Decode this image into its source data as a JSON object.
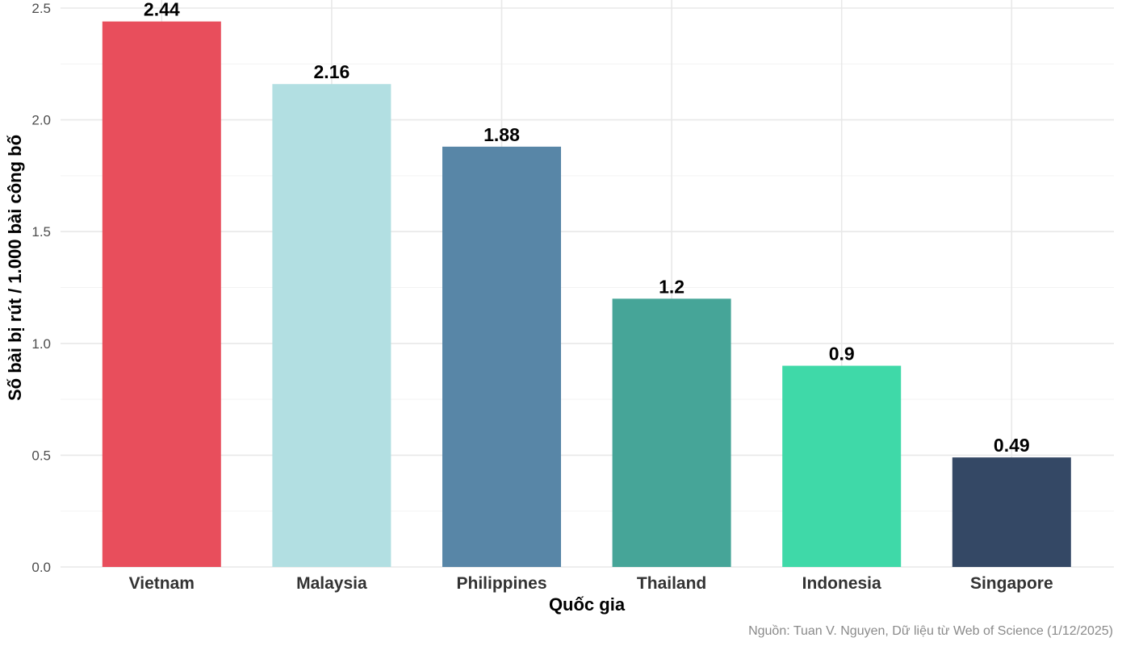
{
  "chart_data": {
    "type": "bar",
    "categories": [
      "Vietnam",
      "Malaysia",
      "Philippines",
      "Thailand",
      "Indonesia",
      "Singapore"
    ],
    "values": [
      2.44,
      2.16,
      1.88,
      1.2,
      0.9,
      0.49
    ],
    "data_labels": [
      "2.44",
      "2.16",
      "1.88",
      "1.2",
      "0.9",
      "0.49"
    ],
    "colors": [
      "#E84E5C",
      "#B2DFE2",
      "#5886A7",
      "#46A598",
      "#3FD9A8",
      "#344865"
    ],
    "xlabel": "Quốc gia",
    "ylabel": "Số bài bị rút / 1.000 bài công bố",
    "ylim": [
      0,
      2.5
    ],
    "yticks": [
      "0.0",
      "0.5",
      "1.0",
      "1.5",
      "2.0",
      "2.5"
    ],
    "grid": true,
    "caption": "Nguồn: Tuan V. Nguyen, Dữ liệu từ Web of Science (1/12/2025)"
  }
}
